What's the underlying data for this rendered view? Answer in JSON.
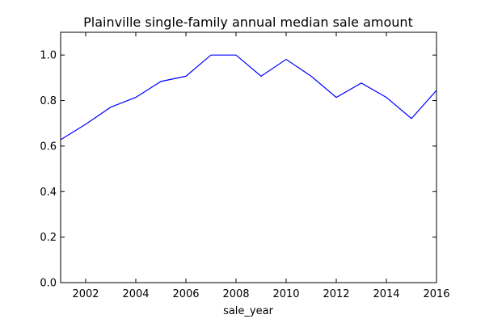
{
  "chart_data": {
    "type": "line",
    "title": "Plainville single-family annual median sale amount",
    "xlabel": "sale_year",
    "ylabel": "",
    "xlim": [
      2001,
      2016
    ],
    "ylim": [
      0.0,
      1.1
    ],
    "xticks": [
      2002,
      2004,
      2006,
      2008,
      2010,
      2012,
      2014,
      2016
    ],
    "yticks": [
      "0.0",
      "0.2",
      "0.4",
      "0.6",
      "0.8",
      "1.0"
    ],
    "grid": false,
    "line_color": "#0000ff",
    "series": [
      {
        "x": [
          2001,
          2002,
          2003,
          2004,
          2005,
          2006,
          2007,
          2008,
          2009,
          2010,
          2011,
          2012,
          2013,
          2014,
          2015,
          2016
        ],
        "values": [
          0.628,
          0.696,
          0.771,
          0.814,
          0.884,
          0.907,
          1.0,
          1.0,
          0.907,
          0.981,
          0.907,
          0.814,
          0.877,
          0.814,
          0.721,
          0.845
        ]
      }
    ]
  }
}
